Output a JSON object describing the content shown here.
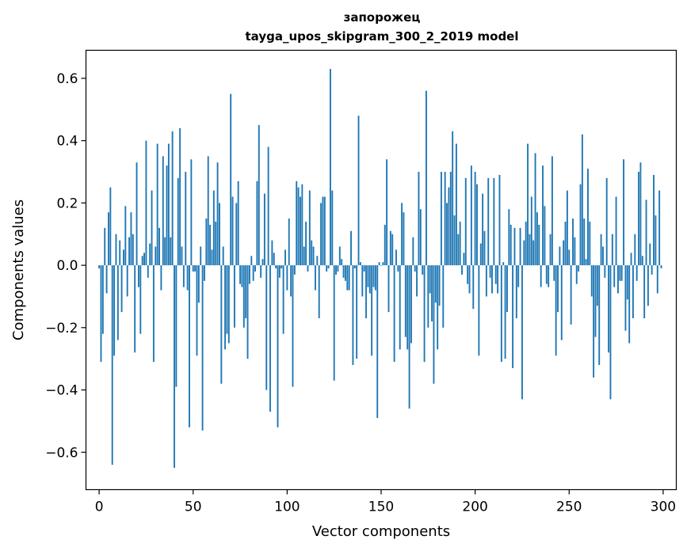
{
  "chart_data": {
    "type": "bar",
    "title": "запорожец",
    "subtitle": "tayga_upos_skipgram_300_2_2019 model",
    "xlabel": "Vector components",
    "ylabel": "Components values",
    "xlim": [
      -7,
      307
    ],
    "ylim": [
      -0.72,
      0.69
    ],
    "xticks": [
      0,
      50,
      100,
      150,
      200,
      250,
      300
    ],
    "yticks": [
      -0.6,
      -0.4,
      -0.2,
      0.0,
      0.2,
      0.4,
      0.6
    ],
    "ytick_labels": [
      "−0.6",
      "−0.4",
      "−0.2",
      "0.0",
      "0.2",
      "0.4",
      "0.6"
    ],
    "bar_color": "#1f77b4",
    "grid": false,
    "x": [
      0,
      1,
      2,
      3,
      4,
      5,
      6,
      7,
      8,
      9,
      10,
      11,
      12,
      13,
      14,
      15,
      16,
      17,
      18,
      19,
      20,
      21,
      22,
      23,
      24,
      25,
      26,
      27,
      28,
      29,
      30,
      31,
      32,
      33,
      34,
      35,
      36,
      37,
      38,
      39,
      40,
      41,
      42,
      43,
      44,
      45,
      46,
      47,
      48,
      49,
      50,
      51,
      52,
      53,
      54,
      55,
      56,
      57,
      58,
      59,
      60,
      61,
      62,
      63,
      64,
      65,
      66,
      67,
      68,
      69,
      70,
      71,
      72,
      73,
      74,
      75,
      76,
      77,
      78,
      79,
      80,
      81,
      82,
      83,
      84,
      85,
      86,
      87,
      88,
      89,
      90,
      91,
      92,
      93,
      94,
      95,
      96,
      97,
      98,
      99,
      100,
      101,
      102,
      103,
      104,
      105,
      106,
      107,
      108,
      109,
      110,
      111,
      112,
      113,
      114,
      115,
      116,
      117,
      118,
      119,
      120,
      121,
      122,
      123,
      124,
      125,
      126,
      127,
      128,
      129,
      130,
      131,
      132,
      133,
      134,
      135,
      136,
      137,
      138,
      139,
      140,
      141,
      142,
      143,
      144,
      145,
      146,
      147,
      148,
      149,
      150,
      151,
      152,
      153,
      154,
      155,
      156,
      157,
      158,
      159,
      160,
      161,
      162,
      163,
      164,
      165,
      166,
      167,
      168,
      169,
      170,
      171,
      172,
      173,
      174,
      175,
      176,
      177,
      178,
      179,
      180,
      181,
      182,
      183,
      184,
      185,
      186,
      187,
      188,
      189,
      190,
      191,
      192,
      193,
      194,
      195,
      196,
      197,
      198,
      199,
      200,
      201,
      202,
      203,
      204,
      205,
      206,
      207,
      208,
      209,
      210,
      211,
      212,
      213,
      214,
      215,
      216,
      217,
      218,
      219,
      220,
      221,
      222,
      223,
      224,
      225,
      226,
      227,
      228,
      229,
      230,
      231,
      232,
      233,
      234,
      235,
      236,
      237,
      238,
      239,
      240,
      241,
      242,
      243,
      244,
      245,
      246,
      247,
      248,
      249,
      250,
      251,
      252,
      253,
      254,
      255,
      256,
      257,
      258,
      259,
      260,
      261,
      262,
      263,
      264,
      265,
      266,
      267,
      268,
      269,
      270,
      271,
      272,
      273,
      274,
      275,
      276,
      277,
      278,
      279,
      280,
      281,
      282,
      283,
      284,
      285,
      286,
      287,
      288,
      289,
      290,
      291,
      292,
      293,
      294,
      295,
      296,
      297,
      298,
      299
    ],
    "values": [
      -0.01,
      -0.31,
      -0.22,
      0.12,
      -0.09,
      0.17,
      0.25,
      -0.64,
      -0.29,
      0.1,
      -0.24,
      0.08,
      -0.15,
      0.05,
      0.19,
      -0.1,
      0.09,
      0.17,
      0.1,
      -0.28,
      0.33,
      -0.07,
      -0.22,
      0.03,
      0.04,
      0.4,
      -0.04,
      0.07,
      0.24,
      -0.31,
      0.06,
      0.39,
      0.12,
      -0.08,
      0.35,
      0.09,
      0.32,
      0.39,
      0.09,
      0.43,
      -0.65,
      -0.39,
      0.28,
      0.44,
      0.06,
      -0.07,
      0.3,
      -0.08,
      -0.52,
      0.34,
      -0.02,
      -0.02,
      -0.29,
      -0.12,
      0.06,
      -0.53,
      -0.05,
      0.15,
      0.35,
      0.13,
      0.05,
      0.24,
      0.14,
      0.33,
      0.2,
      -0.38,
      0.06,
      -0.27,
      -0.22,
      -0.25,
      0.55,
      0.22,
      -0.2,
      0.2,
      0.27,
      -0.06,
      -0.07,
      -0.2,
      -0.17,
      -0.3,
      -0.06,
      0.03,
      -0.05,
      -0.02,
      0.27,
      0.45,
      -0.04,
      0.02,
      0.23,
      -0.4,
      0.38,
      -0.47,
      0.08,
      0.04,
      -0.01,
      -0.52,
      -0.04,
      -0.01,
      -0.22,
      0.05,
      -0.08,
      0.15,
      -0.1,
      -0.39,
      -0.03,
      0.27,
      0.25,
      0.22,
      0.26,
      0.06,
      0.14,
      -0.02,
      0.24,
      0.08,
      0.06,
      -0.08,
      0.03,
      -0.17,
      0.2,
      0.22,
      0.22,
      -0.02,
      -0.01,
      0.63,
      0.24,
      -0.37,
      -0.03,
      -0.02,
      0.06,
      0.02,
      -0.04,
      -0.05,
      -0.08,
      -0.08,
      0.11,
      -0.32,
      -0.01,
      -0.3,
      0.48,
      0.01,
      -0.1,
      -0.02,
      -0.17,
      -0.07,
      -0.09,
      -0.29,
      -0.07,
      -0.08,
      -0.49,
      0.01,
      0.0,
      0.01,
      0.13,
      0.34,
      -0.15,
      0.11,
      0.1,
      -0.31,
      0.05,
      -0.02,
      -0.27,
      0.2,
      0.17,
      -0.23,
      -0.27,
      -0.46,
      -0.25,
      0.09,
      -0.02,
      -0.1,
      0.3,
      0.18,
      -0.03,
      -0.31,
      0.56,
      -0.2,
      -0.09,
      -0.18,
      -0.38,
      -0.12,
      -0.27,
      -0.13,
      0.3,
      -0.2,
      0.3,
      0.2,
      0.25,
      0.3,
      0.43,
      0.16,
      0.39,
      0.1,
      0.14,
      -0.03,
      0.04,
      0.28,
      -0.06,
      -0.09,
      0.32,
      -0.14,
      0.3,
      0.26,
      -0.29,
      0.07,
      0.23,
      0.11,
      -0.1,
      0.28,
      -0.04,
      -0.09,
      0.28,
      -0.06,
      -0.09,
      0.29,
      -0.31,
      0.01,
      -0.3,
      -0.15,
      0.18,
      0.13,
      -0.33,
      0.12,
      -0.17,
      -0.07,
      0.12,
      -0.43,
      0.08,
      0.14,
      0.39,
      0.1,
      0.22,
      0.08,
      0.36,
      0.17,
      0.13,
      -0.07,
      0.32,
      0.19,
      -0.06,
      -0.07,
      0.1,
      0.35,
      -0.05,
      -0.29,
      -0.15,
      0.06,
      -0.24,
      0.08,
      0.14,
      0.24,
      0.05,
      -0.19,
      0.15,
      0.09,
      -0.06,
      -0.02,
      0.26,
      0.42,
      0.15,
      0.02,
      0.31,
      0.14,
      -0.1,
      -0.36,
      -0.23,
      -0.13,
      -0.32,
      0.1,
      0.06,
      -0.04,
      0.28,
      -0.28,
      -0.43,
      0.1,
      -0.07,
      0.22,
      -0.09,
      -0.05,
      -0.05,
      0.34,
      -0.21,
      -0.11,
      -0.25,
      0.04,
      -0.17,
      0.1,
      -0.05,
      0.3,
      0.33,
      0.03,
      -0.17,
      0.21,
      -0.13,
      0.07,
      -0.03,
      0.29,
      0.16,
      -0.09,
      0.24,
      -0.01
    ]
  }
}
